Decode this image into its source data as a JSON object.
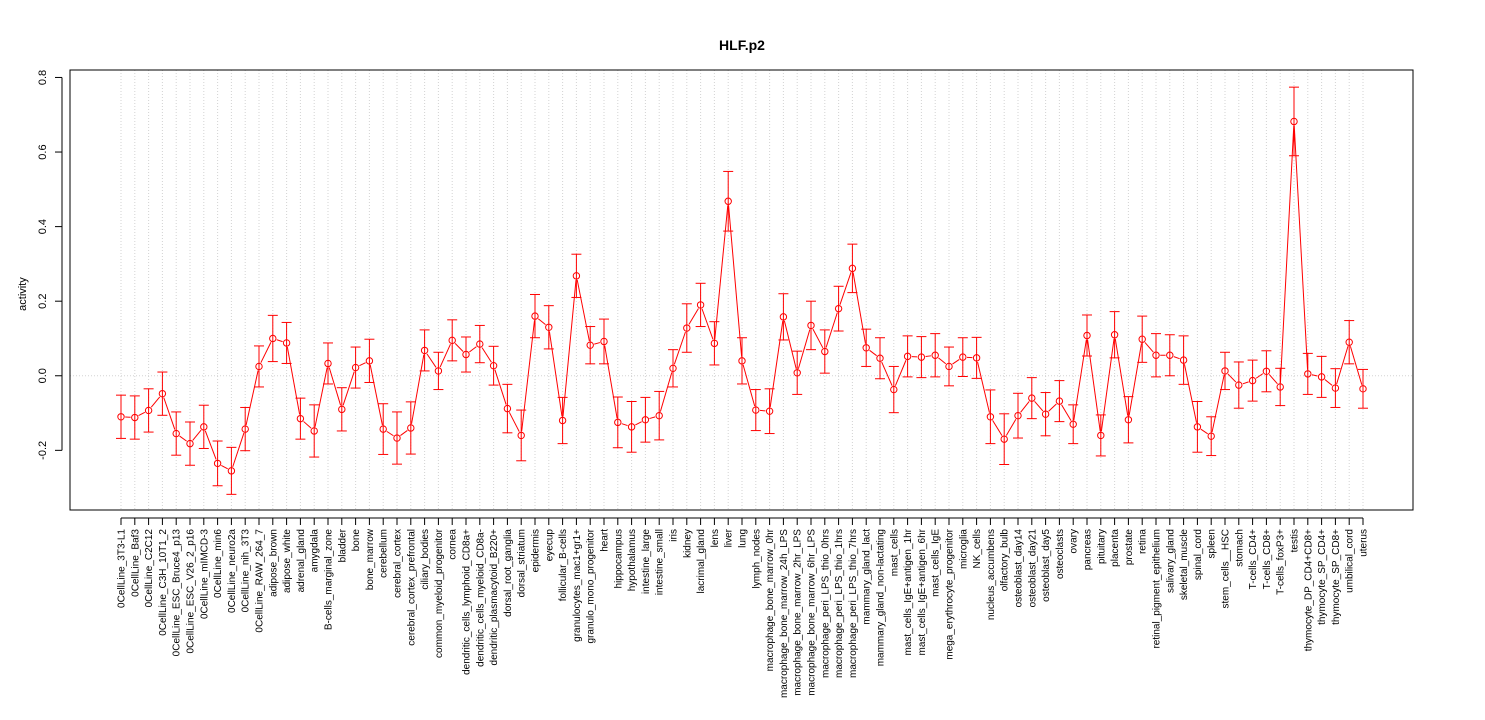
{
  "chart_data": {
    "type": "line",
    "title": "HLF.p2",
    "xlabel": "",
    "ylabel": "activity",
    "ylim": [
      -0.36,
      0.82
    ],
    "yticks": [
      -0.2,
      0.0,
      0.2,
      0.4,
      0.6,
      0.8
    ],
    "ytick_labels": [
      "-0.2",
      "0.0",
      "0.2",
      "0.4",
      "0.6",
      "0.8"
    ],
    "grid": "vertical dotted gridlines at each category; dotted horizontal line at 0",
    "error_bars": true,
    "color": "#ff0000",
    "grid_color": "#d3d3d3",
    "categories": [
      "0CellLine_3T3-L1",
      "0CellLine_Baf3",
      "0CellLine_C2C12",
      "0CellLine_C3H_10T1_2",
      "0CellLine_ESC_Bruce4_p13",
      "0CellLine_ESC_V26_2_p16",
      "0CellLine_mIMCD-3",
      "0CellLine_min6",
      "0CellLine_neuro2a",
      "0CellLine_nih_3T3",
      "0CellLine_RAW_264_7",
      "adipose_brown",
      "adipose_white",
      "adrenal_gland",
      "amygdala",
      "B-cells_marginal_zone",
      "bladder",
      "bone",
      "bone_marrow",
      "cerebellum",
      "cerebral_cortex",
      "cerebral_cortex_prefrontal",
      "ciliary_bodies",
      "common_myeloid_progenitor",
      "cornea",
      "dendritic_cells_lymphoid_CD8a+",
      "dendritic_cells_myeloid_CD8a-",
      "dendritic_plasmacytoid_B220+",
      "dorsal_root_ganglia",
      "dorsal_striatum",
      "epidermis",
      "eyecup",
      "follicular_B-cells",
      "granulocytes_mac1+gr1+",
      "granulo_mono_progenitor",
      "heart",
      "hippocampus",
      "hypothalamus",
      "intestine_large",
      "intestine_small",
      "iris",
      "kidney",
      "lacrimal_gland",
      "lens",
      "liver",
      "lung",
      "lymph_nodes",
      "macrophage_bone_marrow_0hr",
      "macrophage_bone_marrow_24h_LPS",
      "macrophage_bone_marrow_2hr_LPS",
      "macrophage_bone_marrow_6hr_LPS",
      "macrophage_peri_LPS_thio_0hrs",
      "macrophage_peri_LPS_thio_1hrs",
      "macrophage_peri_LPS_thio_7hrs",
      "mammary_gland_lact",
      "mammary_gland_non-lactating",
      "mast_cells",
      "mast_cells_IgE+antigen_1hr",
      "mast_cells_IgE+antigen_6hr",
      "mast_cells_IgE",
      "mega_erythrocyte_progenitor",
      "microglia",
      "NK_cells",
      "nucleus_accumbens",
      "olfactory_bulb",
      "osteoblast_day14",
      "osteoblast_day21",
      "osteoblast_day5",
      "osteoclasts",
      "ovary",
      "pancreas",
      "pituitary",
      "placenta",
      "prostate",
      "retina",
      "retinal_pigment_epithelium",
      "salivary_gland",
      "skeletal_muscle",
      "spinal_cord",
      "spleen",
      "stem_cells__HSC",
      "stomach",
      "T-cells_CD4+",
      "T-cells_CD8+",
      "T-cells_foxP3+",
      "testis",
      "thymocyte_DP_CD4+CD8+",
      "thymocyte_SP_CD4+",
      "thymocyte_SP_CD8+",
      "umbilical_cord",
      "uterus"
    ],
    "values": [
      -0.11,
      -0.112,
      -0.093,
      -0.048,
      -0.155,
      -0.182,
      -0.137,
      -0.235,
      -0.255,
      -0.143,
      0.025,
      0.1,
      0.088,
      -0.115,
      -0.148,
      0.033,
      -0.09,
      0.022,
      0.04,
      -0.143,
      -0.167,
      -0.14,
      0.068,
      0.013,
      0.095,
      0.057,
      0.085,
      0.027,
      -0.088,
      -0.16,
      0.16,
      0.13,
      -0.12,
      0.268,
      0.082,
      0.092,
      -0.125,
      -0.137,
      -0.118,
      -0.107,
      0.02,
      0.128,
      0.19,
      0.087,
      0.468,
      0.04,
      -0.092,
      -0.095,
      0.158,
      0.008,
      0.135,
      0.065,
      0.18,
      0.288,
      0.075,
      0.047,
      -0.037,
      0.052,
      0.05,
      0.055,
      0.025,
      0.05,
      0.048,
      -0.11,
      -0.17,
      -0.107,
      -0.06,
      -0.103,
      -0.068,
      -0.13,
      0.108,
      -0.16,
      0.11,
      -0.118,
      0.098,
      0.055,
      0.055,
      0.042,
      -0.137,
      -0.162,
      0.013,
      -0.025,
      -0.013,
      0.012,
      -0.03,
      0.682,
      0.005,
      -0.003,
      -0.033,
      0.09,
      -0.035
    ],
    "errors": [
      0.058,
      0.058,
      0.058,
      0.058,
      0.058,
      0.058,
      0.058,
      0.06,
      0.063,
      0.058,
      0.055,
      0.062,
      0.055,
      0.055,
      0.07,
      0.055,
      0.058,
      0.055,
      0.058,
      0.068,
      0.07,
      0.07,
      0.055,
      0.05,
      0.055,
      0.047,
      0.05,
      0.052,
      0.065,
      0.068,
      0.058,
      0.058,
      0.062,
      0.058,
      0.05,
      0.06,
      0.068,
      0.068,
      0.06,
      0.065,
      0.05,
      0.065,
      0.058,
      0.058,
      0.08,
      0.062,
      0.055,
      0.06,
      0.062,
      0.058,
      0.065,
      0.058,
      0.06,
      0.065,
      0.05,
      0.055,
      0.062,
      0.055,
      0.055,
      0.058,
      0.052,
      0.052,
      0.055,
      0.072,
      0.068,
      0.06,
      0.055,
      0.058,
      0.055,
      0.052,
      0.055,
      0.055,
      0.062,
      0.062,
      0.062,
      0.058,
      0.055,
      0.065,
      0.068,
      0.052,
      0.05,
      0.062,
      0.055,
      0.055,
      0.05,
      0.092,
      0.055,
      0.055,
      0.052,
      0.058,
      0.052
    ]
  }
}
